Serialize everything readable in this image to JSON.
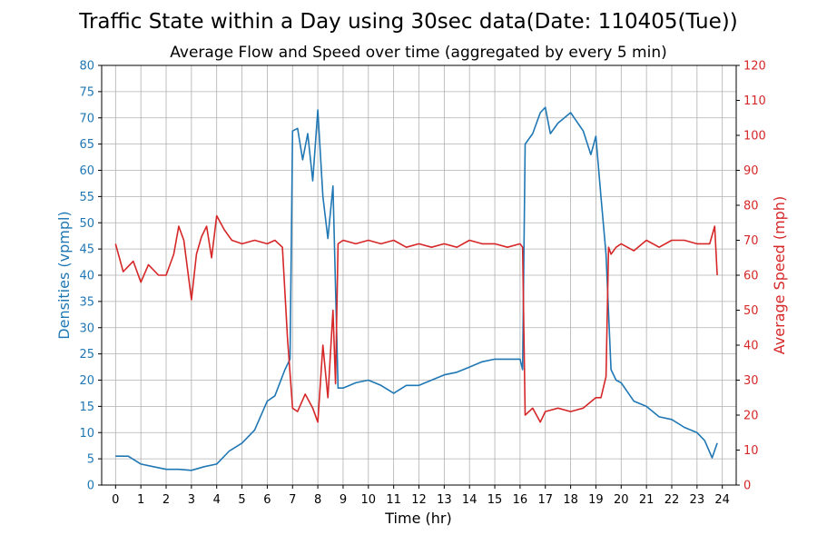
{
  "chart_data": {
    "type": "line",
    "title": "Traffic State within a Day using 30sec data(Date: 110405(Tue))",
    "subtitle": "Average Flow and Speed over time (aggregated by every 5 min)",
    "xlabel": "Time (hr)",
    "ylabel_left": "Densities (vpmpl)",
    "ylabel_right": "Average Speed (mph)",
    "xlim": [
      -0.55,
      24.55
    ],
    "ylim_left": [
      0,
      80
    ],
    "ylim_right": [
      0,
      120
    ],
    "x_ticks": [
      0,
      1,
      2,
      3,
      4,
      5,
      6,
      7,
      8,
      9,
      10,
      11,
      12,
      13,
      14,
      15,
      16,
      17,
      18,
      19,
      20,
      21,
      22,
      23,
      24
    ],
    "y_left_ticks": [
      0,
      5,
      10,
      15,
      20,
      25,
      30,
      35,
      40,
      45,
      50,
      55,
      60,
      65,
      70,
      75,
      80
    ],
    "y_right_ticks": [
      0,
      10,
      20,
      30,
      40,
      50,
      60,
      70,
      80,
      90,
      100,
      110,
      120
    ],
    "grid": true,
    "colors": {
      "left": "#1f77b4",
      "right": "#d62728"
    },
    "series": [
      {
        "axis": "left",
        "color": "#1f77b4",
        "x": [
          0,
          0.5,
          1,
          1.5,
          2,
          2.5,
          3,
          3.5,
          4,
          4.5,
          5,
          5.5,
          6,
          6.3,
          6.7,
          6.9,
          7,
          7.2,
          7.4,
          7.6,
          7.8,
          8,
          8.2,
          8.4,
          8.6,
          8.8,
          9,
          9.5,
          10,
          10.5,
          11,
          11.5,
          12,
          12.5,
          13,
          13.5,
          14,
          14.5,
          15,
          15.5,
          16,
          16.1,
          16.2,
          16.5,
          16.8,
          17,
          17.2,
          17.5,
          18,
          18.5,
          18.8,
          19,
          19.2,
          19.4,
          19.6,
          19.8,
          20,
          20.5,
          21,
          21.5,
          22,
          22.5,
          23,
          23.3,
          23.6,
          23.8
        ],
        "y": [
          5.5,
          5.5,
          4,
          3.5,
          3,
          3,
          2.8,
          3.5,
          4,
          6.5,
          8,
          10.5,
          16,
          17,
          22,
          24,
          67.5,
          68,
          62,
          67,
          58,
          71.5,
          55,
          47,
          57,
          18.5,
          18.5,
          19.5,
          20,
          19,
          17.5,
          19,
          19,
          20,
          21,
          21.5,
          22.5,
          23.5,
          24,
          24,
          24,
          22,
          65,
          67,
          71,
          72,
          67,
          69,
          71,
          67.5,
          63,
          66.5,
          55,
          44,
          22,
          20,
          19.5,
          16,
          15,
          13,
          12.5,
          11,
          10,
          8.5,
          5.2,
          8
        ]
      },
      {
        "axis": "right",
        "color": "#d62728",
        "x": [
          0,
          0.3,
          0.7,
          1,
          1.3,
          1.7,
          2,
          2.3,
          2.5,
          2.7,
          3,
          3.2,
          3.4,
          3.6,
          3.8,
          4,
          4.3,
          4.6,
          5,
          5.5,
          6,
          6.3,
          6.6,
          6.8,
          7,
          7.2,
          7.5,
          7.8,
          8,
          8.2,
          8.4,
          8.6,
          8.7,
          8.8,
          9,
          9.5,
          10,
          10.5,
          11,
          11.5,
          12,
          12.5,
          13,
          13.5,
          14,
          14.5,
          15,
          15.5,
          16,
          16.1,
          16.2,
          16.5,
          16.8,
          17,
          17.5,
          18,
          18.5,
          19,
          19.2,
          19.4,
          19.5,
          19.6,
          19.8,
          20,
          20.5,
          21,
          21.5,
          22,
          22.5,
          23,
          23.5,
          23.7,
          23.8
        ],
        "y": [
          69,
          61,
          64,
          58,
          63,
          60,
          60,
          66,
          74,
          70,
          53,
          66,
          71,
          74,
          65,
          77,
          73,
          70,
          69,
          70,
          69,
          70,
          68,
          42,
          22,
          21,
          26,
          22,
          18,
          40,
          25,
          50,
          29,
          69,
          70,
          69,
          70,
          69,
          70,
          68,
          69,
          68,
          69,
          68,
          70,
          69,
          69,
          68,
          69,
          68,
          20,
          22,
          18,
          21,
          22,
          21,
          22,
          25,
          25,
          31,
          68,
          66,
          68,
          69,
          67,
          70,
          68,
          70,
          70,
          69,
          69,
          74,
          60
        ]
      }
    ]
  }
}
